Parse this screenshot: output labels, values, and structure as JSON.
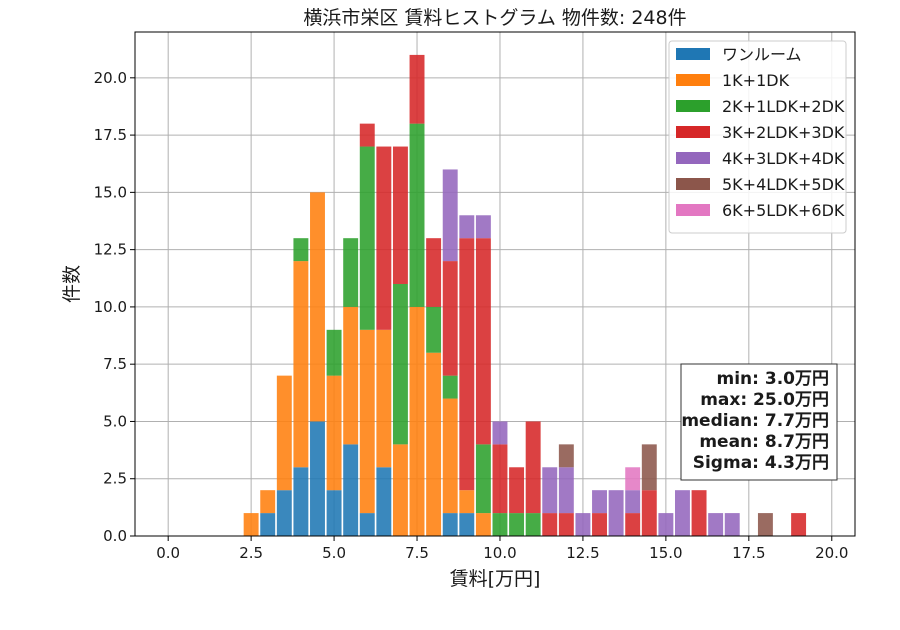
{
  "chart_data": {
    "type": "bar",
    "stacked": true,
    "title": "横浜市栄区 賃料ヒストグラム  物件数: 248件",
    "xlabel": "賃料[万円]",
    "ylabel": "件数",
    "xlim": [
      -1.0,
      20.7
    ],
    "ylim": [
      0,
      22.0
    ],
    "bin_width": 0.5,
    "grid": true,
    "legend_position": "top-right",
    "x_ticks": [
      "0.0",
      "2.5",
      "5.0",
      "7.5",
      "10.0",
      "12.5",
      "15.0",
      "17.5",
      "20.0"
    ],
    "y_ticks": [
      "0.0",
      "2.5",
      "5.0",
      "7.5",
      "10.0",
      "12.5",
      "15.0",
      "17.5",
      "20.0"
    ],
    "x": [
      2.5,
      3.0,
      3.5,
      4.0,
      4.5,
      5.0,
      5.5,
      6.0,
      6.5,
      7.0,
      7.5,
      8.0,
      8.5,
      9.0,
      9.5,
      10.0,
      10.5,
      11.0,
      11.5,
      12.0,
      12.5,
      13.0,
      13.5,
      14.0,
      14.5,
      15.0,
      15.5,
      16.0,
      16.5,
      17.0,
      17.5,
      18.0,
      18.5,
      19.0
    ],
    "series": [
      {
        "name": "ワンルーム",
        "color": "#1f77b4",
        "values": [
          0,
          1,
          2,
          3,
          5,
          2,
          4,
          1,
          3,
          0,
          0,
          0,
          1,
          1,
          0,
          0,
          0,
          0,
          0,
          0,
          0,
          0,
          0,
          0,
          0,
          0,
          0,
          0,
          0,
          0,
          0,
          0,
          0,
          0
        ]
      },
      {
        "name": "1K+1DK",
        "color": "#ff7f0e",
        "values": [
          1,
          1,
          5,
          9,
          10,
          5,
          6,
          8,
          6,
          4,
          10,
          8,
          5,
          1,
          1,
          0,
          0,
          0,
          0,
          0,
          0,
          0,
          0,
          0,
          0,
          0,
          0,
          0,
          0,
          0,
          0,
          0,
          0,
          0
        ]
      },
      {
        "name": "2K+1LDK+2DK",
        "color": "#2ca02c",
        "values": [
          0,
          0,
          0,
          1,
          0,
          2,
          3,
          8,
          0,
          7,
          8,
          2,
          1,
          0,
          3,
          1,
          1,
          1,
          0,
          0,
          0,
          0,
          0,
          0,
          0,
          0,
          0,
          0,
          0,
          0,
          0,
          0,
          0,
          0
        ]
      },
      {
        "name": "3K+2LDK+3DK",
        "color": "#d62728",
        "values": [
          0,
          0,
          0,
          0,
          0,
          0,
          0,
          1,
          8,
          6,
          3,
          3,
          5,
          11,
          9,
          3,
          2,
          4,
          1,
          1,
          0,
          1,
          0,
          1,
          2,
          0,
          0,
          2,
          0,
          0,
          0,
          0,
          0,
          1
        ]
      },
      {
        "name": "4K+3LDK+4DK",
        "color": "#9467bd",
        "values": [
          0,
          0,
          0,
          0,
          0,
          0,
          0,
          0,
          0,
          0,
          0,
          0,
          4,
          1,
          1,
          1,
          0,
          0,
          2,
          2,
          1,
          1,
          2,
          1,
          0,
          1,
          2,
          0,
          1,
          1,
          0,
          0,
          0,
          0
        ]
      },
      {
        "name": "5K+4LDK+5DK",
        "color": "#8c564b",
        "values": [
          0,
          0,
          0,
          0,
          0,
          0,
          0,
          0,
          0,
          0,
          0,
          0,
          0,
          0,
          0,
          0,
          0,
          0,
          0,
          1,
          0,
          0,
          0,
          0,
          2,
          0,
          0,
          0,
          0,
          0,
          0,
          1,
          0,
          0
        ]
      },
      {
        "name": "6K+5LDK+6DK",
        "color": "#e377c2",
        "values": [
          0,
          0,
          0,
          0,
          0,
          0,
          0,
          0,
          0,
          0,
          0,
          0,
          0,
          0,
          0,
          0,
          0,
          0,
          0,
          0,
          0,
          0,
          0,
          1,
          0,
          0,
          0,
          0,
          0,
          0,
          0,
          0,
          0,
          0
        ]
      }
    ],
    "stats": {
      "min": "min: 3.0万円",
      "max": "max: 25.0万円",
      "median": "median: 7.7万円",
      "mean": "mean: 8.7万円",
      "sigma": "Sigma: 4.3万円"
    }
  }
}
